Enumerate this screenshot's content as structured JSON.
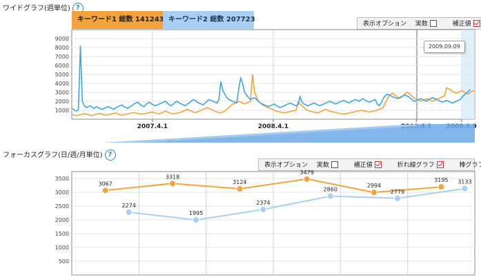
{
  "wide": {
    "title": "ワイドグラフ(週単位)",
    "help": "?",
    "kw1_label": "キーワード1 総数 141243",
    "kw2_label": "キーワード2 総数 207723",
    "options": {
      "title": "表示オプション",
      "actual": "実数",
      "corrected": "補正値"
    },
    "tooltip": "2009.09.09"
  },
  "focus": {
    "title": "フォーカスグラフ(日/週/月単位)",
    "help": "?",
    "options": {
      "title": "表示オプション",
      "actual": "実数",
      "corrected": "補正値",
      "line_graph": "折れ線グラフ",
      "bar_graph": "棒グラフ"
    }
  },
  "colors": {
    "kw1": "#f4a23c",
    "kw2": "#3aa6e6",
    "kw2_light": "#a9cff3",
    "accent": "#2f86c9"
  },
  "chart_data": [
    {
      "type": "line",
      "title": "",
      "xlabel": "",
      "ylabel": "",
      "ylim": [
        0,
        10000
      ],
      "y_ticks": [
        1000,
        2000,
        3000,
        4000,
        5000,
        6000,
        7000,
        8000,
        9000
      ],
      "x_ticks": [
        "2007.4.1",
        "2008.4.1",
        "2009.4.1",
        "2009.9.9"
      ],
      "grid": true,
      "series": [
        {
          "name": "キーワード1",
          "values": [
            500,
            450,
            400,
            450,
            500,
            550,
            600,
            550,
            500,
            450,
            400,
            500,
            550,
            600,
            650,
            550,
            500,
            450,
            500,
            550,
            600,
            650,
            700,
            600,
            500,
            450,
            500,
            550,
            600,
            650,
            700,
            750,
            700,
            650,
            600,
            550,
            600,
            650,
            700,
            750,
            800,
            750,
            700,
            650,
            600,
            700,
            800,
            900,
            800,
            700,
            650,
            600,
            650,
            700,
            750,
            800,
            900,
            1000,
            1100,
            1000,
            900,
            800,
            750,
            800,
            900,
            1000,
            1100,
            1200,
            1300,
            1200,
            1100,
            1000,
            900,
            800,
            750,
            700,
            800,
            900,
            1100,
            1300,
            1500,
            1700,
            1800,
            1900,
            2000,
            1900,
            1800,
            1700,
            1800,
            1900,
            2000,
            5000,
            3000,
            2500,
            2000,
            1800,
            1600,
            1500,
            1400,
            1300,
            1200,
            1100,
            1000,
            900,
            850,
            800,
            750,
            700,
            750,
            800,
            850,
            900,
            950,
            1000,
            1900,
            1700,
            1500,
            1300,
            1100,
            1000,
            900,
            850,
            800,
            750,
            700,
            800,
            900,
            1000,
            1100,
            1000,
            900,
            850,
            800,
            750,
            700,
            650,
            600,
            550,
            600,
            650,
            700,
            750,
            800,
            850,
            900,
            950,
            1000,
            950,
            900,
            850,
            800,
            850,
            900,
            950,
            1000,
            1100,
            1200,
            1300,
            1800,
            2200,
            2600,
            2800,
            2900,
            2700,
            2500,
            2300,
            2400,
            2600,
            2800,
            3000,
            2900,
            2700,
            2500,
            2300,
            2200,
            2100,
            2000,
            2100,
            2200,
            2300,
            2200,
            2100,
            2000,
            2100,
            2200,
            2300,
            2400,
            2500,
            2600,
            3500,
            3400,
            3300,
            3100,
            3000,
            2900,
            3000,
            3100,
            3200,
            3000,
            2900,
            2800,
            3000,
            3100,
            3200
          ]
        },
        {
          "name": "キーワード2",
          "values": [
            1200,
            1000,
            900,
            1100,
            8200,
            2000,
            1500,
            1300,
            1400,
            1500,
            1300,
            1200,
            1400,
            1300,
            1200,
            1100,
            1200,
            1300,
            1400,
            1300,
            1200,
            1100,
            1300,
            1400,
            1500,
            1600,
            1400,
            1300,
            1200,
            1400,
            1500,
            1700,
            1800,
            1900,
            1700,
            1500,
            1400,
            1600,
            1800,
            1900,
            1700,
            1600,
            1500,
            1600,
            1700,
            1800,
            1900,
            2000,
            1800,
            1600,
            1500,
            1700,
            1900,
            2000,
            1800,
            1700,
            1600,
            1500,
            1700,
            1800,
            2000,
            2200,
            2100,
            1900,
            1800,
            1700,
            1600,
            1800,
            2000,
            2200,
            2100,
            2000,
            1900,
            1800,
            2200,
            4200,
            3200,
            2800,
            2400,
            2200,
            2100,
            2000,
            1900,
            1800,
            3300,
            4600,
            4000,
            3000,
            2700,
            2400,
            2200,
            2300,
            2400,
            2200,
            2000,
            1800,
            1700,
            1600,
            1500,
            1400,
            1500,
            1600,
            1700,
            1500,
            1400,
            1300,
            1400,
            1500,
            1600,
            1700,
            1800,
            1700,
            1600,
            1500,
            1600,
            2500,
            1900,
            1700,
            1600,
            1500,
            1600,
            1700,
            1800,
            1700,
            1600,
            1500,
            1600,
            1700,
            1800,
            1900,
            2000,
            1900,
            1800,
            1700,
            1800,
            1900,
            2000,
            2100,
            2000,
            1900,
            1800,
            2000,
            2100,
            2200,
            2100,
            2000,
            2200,
            2300,
            2100,
            2000,
            1900,
            2000,
            2100,
            2200,
            1700,
            1500,
            1800,
            2300,
            2600,
            2800,
            2700,
            2600,
            2500,
            2400,
            2300,
            2400,
            2500,
            2600,
            2700,
            2600,
            2500,
            2300,
            2100,
            2000,
            2100,
            2200,
            2300,
            2200,
            2100,
            2000,
            2200,
            2300,
            2400,
            2300,
            2200,
            2100,
            2000,
            1900,
            2000,
            2100,
            2000,
            1900,
            1800,
            1900,
            2000,
            2100,
            2200,
            2500,
            2700,
            2900,
            3100,
            3300
          ]
        }
      ]
    },
    {
      "type": "line",
      "title": "",
      "xlabel": "",
      "ylabel": "",
      "ylim": [
        0,
        3750
      ],
      "y_ticks": [
        500,
        1000,
        1500,
        2000,
        2500,
        3000,
        3500
      ],
      "grid": true,
      "series": [
        {
          "name": "キーワード1",
          "x": [
            0,
            1,
            2,
            3,
            4,
            5
          ],
          "values": [
            3067,
            3318,
            3124,
            3479,
            2994,
            3195
          ],
          "labels": [
            "3067",
            "3318",
            "3124",
            "3479",
            "2994",
            "3195"
          ]
        },
        {
          "name": "キーワード2",
          "x": [
            0.35,
            1.35,
            2.35,
            3.35,
            4.35,
            5.35
          ],
          "values": [
            2274,
            1995,
            2374,
            2860,
            2779,
            3133
          ],
          "labels": [
            "2274",
            "1995",
            "2374",
            "2860",
            "2779",
            "3133"
          ]
        }
      ]
    }
  ]
}
